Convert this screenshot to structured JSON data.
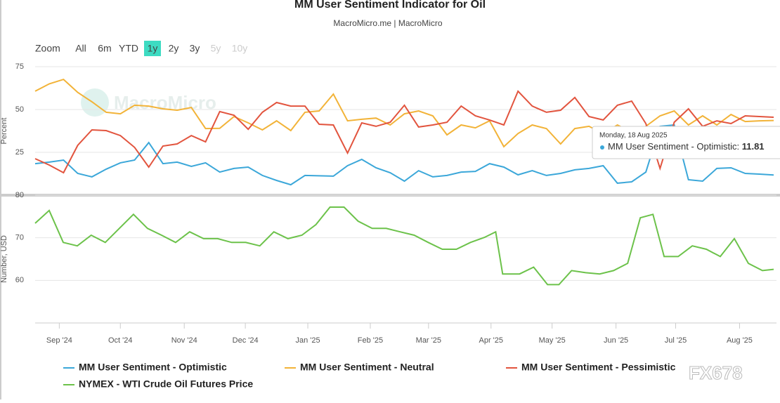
{
  "header": {
    "title": "MM User Sentiment Indicator for Oil",
    "subtitle": "MacroMicro.me | MacroMicro",
    "watermark": "MacroMicro",
    "corner_watermark": "FX678"
  },
  "zoom": {
    "label": "Zoom",
    "buttons": [
      "All",
      "6m",
      "YTD",
      "1y",
      "2y",
      "3y",
      "5y",
      "10y"
    ],
    "active": "1y",
    "disabled": [
      "5y",
      "10y"
    ]
  },
  "tooltip": {
    "date": "Monday, 18 Aug 2025",
    "name": "MM User Sentiment - Optimistic:",
    "value": 11.81
  },
  "chart_data": [
    {
      "type": "line",
      "y_label": "Percent",
      "grid": true,
      "x": [
        0,
        1,
        2,
        3,
        4,
        5,
        6,
        7,
        8,
        9,
        10,
        11,
        12,
        13,
        14,
        15,
        16,
        17,
        18,
        19,
        20,
        21,
        22,
        23,
        24,
        25,
        26,
        27,
        28,
        29,
        30,
        31,
        32,
        33,
        34,
        35,
        36,
        37,
        38,
        39,
        40,
        41,
        42,
        43,
        44,
        45,
        46,
        47,
        48,
        49,
        50,
        51,
        52
      ],
      "xlim": [
        0,
        52.2
      ],
      "ylim": [
        0,
        75
      ],
      "yticks": [
        25,
        50,
        75
      ],
      "series": [
        {
          "name": "MM User Sentiment - Optimistic",
          "color": "#3ba7d9",
          "values": [
            18.4,
            19.3,
            20.5,
            12.7,
            10.7,
            15.2,
            18.9,
            20.5,
            30.7,
            18.4,
            19.3,
            16.8,
            18.9,
            13.5,
            15.6,
            16.4,
            11.5,
            8.6,
            6.1,
            11.5,
            11.3,
            11.1,
            17.2,
            20.9,
            16.0,
            13.1,
            8.2,
            14.3,
            10.7,
            11.5,
            13.5,
            13.9,
            18.4,
            16.4,
            11.9,
            14.3,
            11.5,
            12.7,
            14.8,
            15.6,
            17.2,
            7.0,
            7.8,
            13.5,
            40.2,
            41.0,
            9.0,
            8.2,
            15.6,
            16.0,
            12.7,
            12.3,
            11.81
          ]
        },
        {
          "name": "MM User Sentiment - Neutral",
          "color": "#f2b338",
          "values": [
            60.7,
            65,
            67.6,
            60,
            54.5,
            48.4,
            47.5,
            52.5,
            52,
            50.4,
            49.6,
            51.2,
            38.9,
            39,
            45.9,
            42.2,
            38.1,
            43.4,
            37.7,
            48.4,
            49.2,
            59,
            43.4,
            44.3,
            45,
            41,
            47.5,
            49.2,
            46.3,
            35.2,
            41,
            39.3,
            43.4,
            28.3,
            36,
            41,
            38.9,
            29.9,
            38.9,
            40.2,
            36,
            41,
            36.9,
            40.2,
            46.3,
            49.2,
            41,
            46.3,
            41,
            47.1,
            43,
            43.4,
            43.6
          ]
        },
        {
          "name": "MM User Sentiment - Pessimistic",
          "color": "#e2543e",
          "values": [
            21.3,
            17.6,
            13.1,
            29.1,
            38.1,
            37.7,
            34.8,
            27.9,
            16.4,
            28.7,
            29.9,
            34.8,
            31.1,
            48.8,
            46.7,
            38.5,
            48.4,
            54.1,
            52,
            52,
            41.4,
            41,
            24.6,
            42.2,
            40.2,
            42.6,
            52.5,
            39.8,
            41,
            42.6,
            52,
            46.3,
            43.9,
            41,
            60.7,
            52,
            48.4,
            49.6,
            57,
            45.9,
            43.9,
            52.5,
            54.9,
            41.8,
            15.6,
            42.6,
            50.4,
            40.2,
            43.4,
            41.8,
            46.3,
            45.9,
            45.5
          ]
        }
      ]
    },
    {
      "type": "line",
      "y_label": "Number, USD",
      "grid": true,
      "x": [
        0,
        0.99,
        1.98,
        2.97,
        3.95,
        4.94,
        5.93,
        6.92,
        7.91,
        8.9,
        9.89,
        10.88,
        11.86,
        12.85,
        13.84,
        14.83,
        15.82,
        16.81,
        17.8,
        18.78,
        19.77,
        20.76,
        21.75,
        22.74,
        23.73,
        24.72,
        25.7,
        26.69,
        27.68,
        28.67,
        29.66,
        30.65,
        31.64,
        32.43,
        32.92,
        34.11,
        35.1,
        36.08,
        36.88,
        37.77,
        38.76,
        39.75,
        40.73,
        41.72,
        42.61,
        43.5,
        44.29,
        45.28,
        46.27,
        47.26,
        48.24,
        49.23,
        50.22,
        51.21,
        52.0
      ],
      "xlim": [
        0,
        52.2
      ],
      "ylim": [
        50,
        80
      ],
      "yticks": [
        60,
        70,
        80
      ],
      "xticks": [
        {
          "value": 1.7,
          "label": "Sep '24"
        },
        {
          "value": 6.0,
          "label": "Oct '24"
        },
        {
          "value": 10.5,
          "label": "Nov '24"
        },
        {
          "value": 14.8,
          "label": "Dec '24"
        },
        {
          "value": 19.2,
          "label": "Jan '25"
        },
        {
          "value": 23.6,
          "label": "Feb '25"
        },
        {
          "value": 27.7,
          "label": "Mar '25"
        },
        {
          "value": 32.1,
          "label": "Apr '25"
        },
        {
          "value": 36.4,
          "label": "May '25"
        },
        {
          "value": 40.9,
          "label": "Jun '25"
        },
        {
          "value": 45.1,
          "label": "Jul '25"
        },
        {
          "value": 49.6,
          "label": "Aug '25"
        }
      ],
      "series": [
        {
          "name": "NYMEX - WTI Crude Oil Futures Price",
          "color": "#6cc24a",
          "values": [
            73.4,
            76.4,
            68.9,
            68.1,
            70.6,
            68.9,
            72.2,
            75.5,
            72.2,
            70.6,
            68.9,
            71.4,
            69.8,
            69.8,
            68.9,
            68.9,
            68.1,
            71.4,
            69.8,
            70.6,
            73.1,
            77.2,
            77.2,
            73.9,
            72.2,
            72.2,
            71.4,
            70.6,
            68.9,
            67.3,
            67.3,
            68.9,
            70.1,
            71.4,
            61.5,
            61.5,
            63.1,
            59,
            59,
            62.3,
            61.8,
            61.5,
            62.3,
            64,
            74.7,
            75.5,
            65.6,
            65.6,
            68.1,
            67.3,
            65.6,
            69.8,
            64,
            62.3,
            62.6
          ]
        }
      ]
    }
  ]
}
